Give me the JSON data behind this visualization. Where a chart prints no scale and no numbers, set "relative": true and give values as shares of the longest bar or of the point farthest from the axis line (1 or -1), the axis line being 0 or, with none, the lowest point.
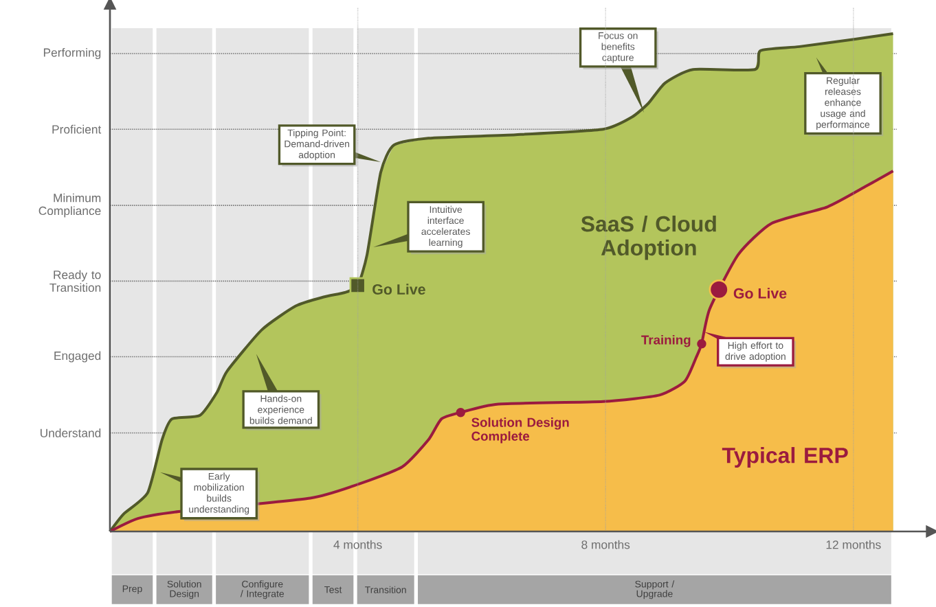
{
  "chart_data": {
    "type": "area",
    "relative": true,
    "series": [
      {
        "name": "SaaS / Cloud Adoption",
        "color": "#b3c55c",
        "x": [
          0,
          0.22,
          0.61,
          0.84,
          1.0,
          1.45,
          1.73,
          1.89,
          2.45,
          3.0,
          3.45,
          3.79,
          4.0,
          4.15,
          4.37,
          4.58,
          5.14,
          6.55,
          7.96,
          8.42,
          8.69,
          8.96,
          9.41,
          10.41,
          10.5,
          11.13,
          12.03,
          12.64
        ],
        "values": [
          0,
          0.035,
          0.078,
          0.184,
          0.226,
          0.233,
          0.28,
          0.322,
          0.405,
          0.453,
          0.471,
          0.48,
          0.494,
          0.556,
          0.721,
          0.776,
          0.79,
          0.797,
          0.808,
          0.832,
          0.86,
          0.901,
          0.928,
          0.928,
          0.966,
          0.974,
          0.989,
          1.0
        ]
      },
      {
        "name": "Typical ERP",
        "color": "#f6bd4a",
        "x": [
          0,
          0.45,
          1.11,
          3.23,
          4.01,
          4.72,
          5.14,
          5.35,
          5.66,
          6.27,
          7.96,
          8.87,
          9.28,
          9.46,
          9.55,
          9.68,
          10.14,
          10.68,
          11.58,
          12.21,
          12.64
        ],
        "values": [
          0,
          0.026,
          0.04,
          0.067,
          0.095,
          0.13,
          0.184,
          0.226,
          0.239,
          0.256,
          0.261,
          0.274,
          0.302,
          0.349,
          0.377,
          0.447,
          0.556,
          0.619,
          0.652,
          0.694,
          0.724
        ]
      }
    ],
    "xlim": [
      0,
      13.2
    ],
    "xticks": [
      {
        "value": 4,
        "label": "4 months"
      },
      {
        "value": 8,
        "label": "8 months"
      },
      {
        "value": 12,
        "label": "12 months"
      }
    ],
    "grid": "x",
    "ref_lines": [
      {
        "axis": "y",
        "value": 0.198,
        "label": "Understand",
        "line_style": "dotted"
      },
      {
        "axis": "y",
        "value": 0.351,
        "label": "Engaged",
        "line_style": "dotted"
      },
      {
        "axis": "y",
        "value": 0.503,
        "label": "Ready to Transition",
        "line_style": "dotted"
      },
      {
        "axis": "y",
        "value": 0.655,
        "label": "Minimum Compliance",
        "line_style": "dotted"
      },
      {
        "axis": "y",
        "value": 0.808,
        "label": "Proficient",
        "line_style": "dotted"
      },
      {
        "axis": "y",
        "value": 0.96,
        "label": "Performing",
        "line_style": "dotted"
      }
    ],
    "bands": [
      {
        "axis": "x",
        "from": 0,
        "to": 0.72,
        "label": "Prep",
        "color": "#e6e6e6"
      },
      {
        "axis": "x",
        "from": 0.72,
        "to": 1.68,
        "label": "Solution Design",
        "color": "#e6e6e6"
      },
      {
        "axis": "x",
        "from": 1.68,
        "to": 3.24,
        "label": "Configure / Integrate",
        "color": "#e6e6e6"
      },
      {
        "axis": "x",
        "from": 3.24,
        "to": 3.96,
        "label": "Test",
        "color": "#e6e6e6"
      },
      {
        "axis": "x",
        "from": 3.96,
        "to": 4.94,
        "label": "Transition",
        "color": "#e6e6e6"
      },
      {
        "axis": "x",
        "from": 4.94,
        "to": 12.64,
        "label": "Support / Upgrade",
        "color": "#e6e6e6"
      }
    ],
    "annotations": [
      "Early mobilization builds understanding",
      "Hands-on experience builds demand",
      "Tipping Point: Demand-driven adoption",
      "Intuitive interface accelerates learning",
      "Focus on benefits capture",
      "Regular releases enhance usage and performance",
      "High effort to drive adoption",
      {
        "text": "Go Live",
        "x": 4.0,
        "y": 0.494
      },
      {
        "text": "Solution Design Complete",
        "x": 5.66,
        "y": 0.239
      },
      {
        "text": "Training",
        "x": 9.55,
        "y": 0.377
      },
      {
        "text": "Go Live",
        "x": 9.83,
        "y": 0.486
      }
    ]
  }
}
